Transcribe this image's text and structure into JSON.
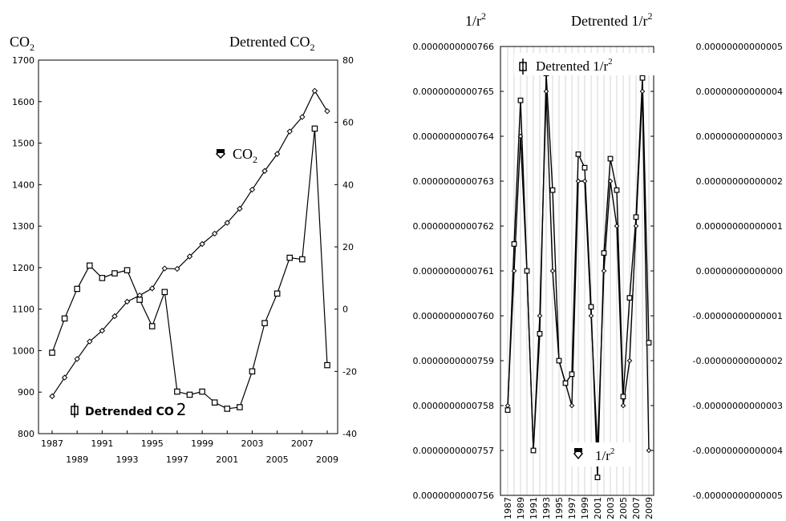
{
  "chart_data": [
    {
      "type": "line",
      "axes_labels": {
        "left_title": "CO",
        "left_title_sub": "2",
        "right_title": "Detrented CO",
        "right_title_sub": "2"
      },
      "legend": [
        {
          "label": "CO",
          "sub": "2",
          "marker": "diamond",
          "placement": "middle-right"
        },
        {
          "label": "Detrended CO",
          "sub": "2",
          "marker": "square",
          "placement": "bottom-left"
        }
      ],
      "ylim_left": [
        800,
        1700
      ],
      "ylim_right": [
        -40,
        80
      ],
      "left_ticks": [
        "800",
        "900",
        "1000",
        "1100",
        "1200",
        "1300",
        "1400",
        "1500",
        "1600",
        "1700"
      ],
      "right_ticks": [
        "-40",
        "-20",
        "0",
        "20",
        "40",
        "60",
        "80"
      ],
      "x_ticks_upper": [
        "1987",
        "1991",
        "1995",
        "1999",
        "2003",
        "2007"
      ],
      "x_ticks_lower": [
        "1989",
        "1993",
        "1997",
        "2001",
        "2005",
        "2009"
      ],
      "x": [
        1987,
        1988,
        1989,
        1990,
        1991,
        1992,
        1993,
        1994,
        1995,
        1996,
        1997,
        1998,
        1999,
        2000,
        2001,
        2002,
        2003,
        2004,
        2005,
        2006,
        2007,
        2008,
        2009
      ],
      "series": [
        {
          "name": "CO2",
          "axis": "left",
          "marker": "diamond",
          "values": [
            890,
            935,
            980,
            1022,
            1048,
            1083,
            1118,
            1133,
            1150,
            1198,
            1197,
            1227,
            1257,
            1282,
            1308,
            1342,
            1388,
            1433,
            1474,
            1528,
            1563,
            1626,
            1577
          ]
        },
        {
          "name": "Detrended CO2",
          "axis": "right",
          "marker": "square",
          "values": [
            -14,
            -3,
            6.5,
            14,
            10,
            11.5,
            12.5,
            3,
            -5.5,
            5.5,
            -26.5,
            -27.5,
            -26.5,
            -30,
            -32,
            -31.5,
            -20,
            -4.5,
            5,
            16.5,
            16,
            58,
            -18
          ]
        }
      ]
    },
    {
      "type": "line",
      "axes_labels": {
        "left_title": "1/r",
        "right_title": "Detrented 1/r",
        "sup": "2"
      },
      "legend": [
        {
          "label": "Detrented 1/r",
          "sup": "2",
          "marker": "square",
          "placement": "top-left"
        },
        {
          "label": "1/r",
          "sup": "2",
          "marker": "diamond",
          "placement": "bottom-right"
        }
      ],
      "ylim_left": [
        7.56e-11,
        7.66e-11
      ],
      "ylim_right": [
        -5e-14,
        5e-14
      ],
      "left_ticks": [
        "0.0000000000756",
        "0.0000000000757",
        "0.0000000000758",
        "0.0000000000759",
        "0.0000000000760",
        "0.0000000000761",
        "0.0000000000762",
        "0.0000000000763",
        "0.0000000000764",
        "0.0000000000765",
        "0.0000000000766"
      ],
      "right_ticks": [
        "-0.00000000000005",
        "-0.00000000000004",
        "-0.00000000000003",
        "-0.00000000000002",
        "-0.00000000000001",
        "0.00000000000000",
        "0.00000000000001",
        "0.00000000000002",
        "0.00000000000003",
        "0.00000000000004",
        "0.00000000000005"
      ],
      "x_ticks": [
        "1987",
        "1989",
        "1991",
        "1993",
        "1995",
        "1997",
        "1999",
        "2001",
        "2003",
        "2005",
        "2007",
        "2009"
      ],
      "grid": "vertical",
      "x": [
        1987,
        1988,
        1989,
        1990,
        1991,
        1992,
        1993,
        1994,
        1995,
        1996,
        1997,
        1998,
        1999,
        2000,
        2001,
        2002,
        2003,
        2004,
        2005,
        2006,
        2007,
        2008,
        2009
      ],
      "series": [
        {
          "name": "1/r^2",
          "axis": "left",
          "marker": "diamond",
          "values": [
            7.58e-11,
            7.61e-11,
            7.64e-11,
            7.61e-11,
            7.57e-11,
            7.6e-11,
            7.65e-11,
            7.61e-11,
            7.59e-11,
            7.585e-11,
            7.58e-11,
            7.63e-11,
            7.63e-11,
            7.6e-11,
            7.57e-11,
            7.61e-11,
            7.63e-11,
            7.62e-11,
            7.58e-11,
            7.59e-11,
            7.62e-11,
            7.65e-11,
            7.57e-11
          ]
        },
        {
          "name": "Detrented 1/r^2",
          "axis": "right",
          "marker": "square",
          "values": [
            -3.1e-14,
            6e-15,
            3.8e-14,
            0.0,
            -4e-14,
            -1.4e-14,
            4.4e-14,
            1.8e-14,
            -2e-14,
            -2.5e-14,
            -2.3e-14,
            2.6e-14,
            2.3e-14,
            -8e-15,
            -4.6e-14,
            4e-15,
            2.5e-14,
            1.8e-14,
            -2.8e-14,
            -6e-15,
            1.2e-14,
            4.3e-14,
            -1.6e-14
          ]
        }
      ]
    }
  ]
}
